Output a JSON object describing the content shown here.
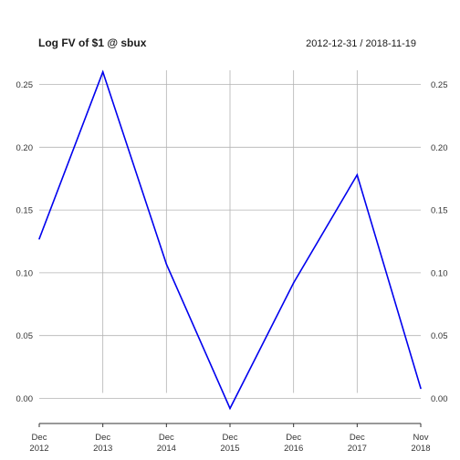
{
  "chart_data": {
    "type": "line",
    "title": "Log FV of $1 @ sbux",
    "date_range": "2012-12-31 / 2018-11-19",
    "xlabel": "",
    "ylabel": "",
    "categories": [
      "Dec 2012",
      "Dec 2013",
      "Dec 2014",
      "Dec 2015",
      "Dec 2016",
      "Dec 2017",
      "Nov 2018"
    ],
    "x_tick_labels": [
      {
        "month": "Dec",
        "year": "2012"
      },
      {
        "month": "Dec",
        "year": "2013"
      },
      {
        "month": "Dec",
        "year": "2014"
      },
      {
        "month": "Dec",
        "year": "2015"
      },
      {
        "month": "Dec",
        "year": "2016"
      },
      {
        "month": "Dec",
        "year": "2017"
      },
      {
        "month": "Nov",
        "year": "2018"
      }
    ],
    "series": [
      {
        "values": [
          0.127,
          0.26,
          0.107,
          -0.008,
          0.092,
          0.178,
          0.008
        ],
        "color": "#0000ee"
      }
    ],
    "y_ticks": [
      "0.00",
      "0.05",
      "0.10",
      "0.15",
      "0.20",
      "0.25"
    ],
    "ylim": [
      -0.02,
      0.27
    ],
    "grid": true,
    "grid_color": "#b3b3b3",
    "axis_color": "#333333"
  }
}
